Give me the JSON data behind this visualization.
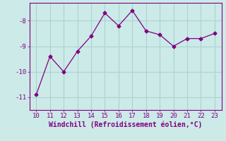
{
  "x": [
    10,
    11,
    12,
    13,
    14,
    15,
    16,
    17,
    18,
    19,
    20,
    21,
    22,
    23
  ],
  "y": [
    -10.9,
    -9.4,
    -10.0,
    -9.2,
    -8.6,
    -7.7,
    -8.2,
    -7.6,
    -8.4,
    -8.55,
    -9.0,
    -8.7,
    -8.7,
    -8.5
  ],
  "line_color": "#800080",
  "marker": "D",
  "marker_size": 2.5,
  "bg_color": "#cceae8",
  "grid_color": "#aad4d0",
  "xlabel": "Windchill (Refroidissement éolien,°C)",
  "xlabel_color": "#800080",
  "tick_color": "#800080",
  "ylim": [
    -11.5,
    -7.3
  ],
  "xlim": [
    9.5,
    23.5
  ],
  "yticks": [
    -11,
    -10,
    -9,
    -8
  ],
  "xticks": [
    10,
    11,
    12,
    13,
    14,
    15,
    16,
    17,
    18,
    19,
    20,
    21,
    22,
    23
  ]
}
